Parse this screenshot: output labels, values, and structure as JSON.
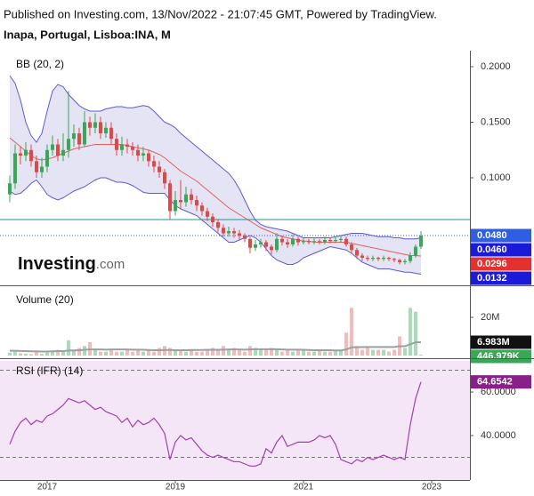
{
  "header": {
    "published": "Published on Investing.com, 13/Nov/2022 - 21:07:45 GMT, Powered by TradingView.",
    "symbol": "Inapa, Portugal, Lisboa:INA, M",
    "logo": "Investing",
    "logo_suffix": ".com"
  },
  "chart_data": [
    {
      "type": "candlestick",
      "title": "BB (20, 2)",
      "up_color": "#3aa757",
      "down_color": "#e04848",
      "band_color": "#5b5bd6",
      "band_fill": "#e4e4f4",
      "middle_color": "#e06060",
      "hline_color": "#2a8f8f",
      "open": [
        0.085,
        0.095,
        0.122,
        0.12,
        0.125,
        0.115,
        0.105,
        0.11,
        0.125,
        0.13,
        0.12,
        0.125,
        0.135,
        0.14,
        0.13,
        0.15,
        0.145,
        0.15,
        0.14,
        0.145,
        0.135,
        0.125,
        0.13,
        0.128,
        0.125,
        0.12,
        0.122,
        0.115,
        0.11,
        0.105,
        0.095,
        0.07,
        0.08,
        0.078,
        0.085,
        0.08,
        0.075,
        0.07,
        0.065,
        0.06,
        0.055,
        0.05,
        0.052,
        0.05,
        0.048,
        0.045,
        0.037,
        0.04,
        0.042,
        0.038,
        0.035,
        0.045,
        0.042,
        0.04,
        0.045,
        0.042,
        0.043,
        0.042,
        0.043,
        0.042,
        0.044,
        0.043,
        0.044,
        0.045,
        0.04,
        0.035,
        0.03,
        0.028,
        0.027,
        0.028,
        0.027,
        0.028,
        0.027,
        0.026,
        0.024,
        0.025,
        0.03,
        0.038
      ],
      "high": [
        0.102,
        0.13,
        0.128,
        0.132,
        0.13,
        0.12,
        0.118,
        0.13,
        0.138,
        0.135,
        0.14,
        0.178,
        0.148,
        0.145,
        0.16,
        0.155,
        0.158,
        0.155,
        0.15,
        0.15,
        0.14,
        0.137,
        0.135,
        0.132,
        0.13,
        0.128,
        0.125,
        0.12,
        0.115,
        0.108,
        0.098,
        0.088,
        0.098,
        0.092,
        0.09,
        0.084,
        0.078,
        0.073,
        0.068,
        0.063,
        0.058,
        0.056,
        0.055,
        0.053,
        0.05,
        0.047,
        0.044,
        0.045,
        0.044,
        0.04,
        0.05,
        0.048,
        0.045,
        0.049,
        0.047,
        0.046,
        0.045,
        0.046,
        0.045,
        0.047,
        0.046,
        0.047,
        0.048,
        0.047,
        0.042,
        0.037,
        0.032,
        0.03,
        0.03,
        0.029,
        0.03,
        0.029,
        0.028,
        0.027,
        0.027,
        0.033,
        0.04,
        0.052
      ],
      "low": [
        0.078,
        0.09,
        0.112,
        0.115,
        0.11,
        0.1,
        0.1,
        0.105,
        0.12,
        0.115,
        0.115,
        0.118,
        0.128,
        0.125,
        0.128,
        0.138,
        0.14,
        0.135,
        0.136,
        0.13,
        0.12,
        0.12,
        0.122,
        0.12,
        0.115,
        0.115,
        0.11,
        0.105,
        0.1,
        0.09,
        0.062,
        0.066,
        0.072,
        0.074,
        0.076,
        0.07,
        0.066,
        0.061,
        0.056,
        0.051,
        0.047,
        0.047,
        0.046,
        0.044,
        0.042,
        0.032,
        0.034,
        0.037,
        0.034,
        0.031,
        0.033,
        0.039,
        0.037,
        0.038,
        0.039,
        0.04,
        0.04,
        0.04,
        0.04,
        0.04,
        0.041,
        0.041,
        0.042,
        0.038,
        0.032,
        0.027,
        0.025,
        0.025,
        0.025,
        0.025,
        0.025,
        0.025,
        0.024,
        0.022,
        0.022,
        0.023,
        0.028,
        0.036
      ],
      "close": [
        0.095,
        0.122,
        0.12,
        0.125,
        0.115,
        0.105,
        0.11,
        0.125,
        0.13,
        0.12,
        0.125,
        0.135,
        0.14,
        0.13,
        0.15,
        0.145,
        0.15,
        0.14,
        0.145,
        0.135,
        0.125,
        0.13,
        0.128,
        0.125,
        0.12,
        0.122,
        0.115,
        0.11,
        0.105,
        0.095,
        0.07,
        0.08,
        0.078,
        0.085,
        0.08,
        0.075,
        0.07,
        0.065,
        0.06,
        0.055,
        0.05,
        0.052,
        0.05,
        0.048,
        0.045,
        0.037,
        0.04,
        0.042,
        0.038,
        0.035,
        0.045,
        0.042,
        0.04,
        0.045,
        0.042,
        0.043,
        0.042,
        0.043,
        0.042,
        0.044,
        0.043,
        0.044,
        0.045,
        0.04,
        0.035,
        0.03,
        0.028,
        0.027,
        0.028,
        0.027,
        0.028,
        0.027,
        0.026,
        0.024,
        0.025,
        0.03,
        0.038,
        0.048
      ],
      "bb_upper": [
        0.192,
        0.185,
        0.17,
        0.15,
        0.138,
        0.132,
        0.14,
        0.16,
        0.178,
        0.184,
        0.182,
        0.175,
        0.17,
        0.165,
        0.162,
        0.16,
        0.16,
        0.16,
        0.162,
        0.163,
        0.164,
        0.164,
        0.163,
        0.163,
        0.164,
        0.165,
        0.164,
        0.16,
        0.155,
        0.15,
        0.148,
        0.145,
        0.14,
        0.136,
        0.132,
        0.128,
        0.124,
        0.12,
        0.116,
        0.112,
        0.108,
        0.104,
        0.098,
        0.09,
        0.08,
        0.07,
        0.062,
        0.058,
        0.056,
        0.055,
        0.054,
        0.053,
        0.052,
        0.05,
        0.048,
        0.046,
        0.046,
        0.046,
        0.046,
        0.046,
        0.046,
        0.047,
        0.048,
        0.049,
        0.05,
        0.05,
        0.05,
        0.049,
        0.048,
        0.047,
        0.047,
        0.047,
        0.046,
        0.046,
        0.045,
        0.045,
        0.045,
        0.046
      ],
      "bb_middle": [
        0.136,
        0.132,
        0.128,
        0.124,
        0.12,
        0.117,
        0.116,
        0.117,
        0.118,
        0.12,
        0.122,
        0.124,
        0.126,
        0.127,
        0.128,
        0.129,
        0.13,
        0.13,
        0.13,
        0.13,
        0.13,
        0.13,
        0.129,
        0.128,
        0.127,
        0.126,
        0.125,
        0.123,
        0.121,
        0.118,
        0.114,
        0.11,
        0.106,
        0.103,
        0.1,
        0.097,
        0.093,
        0.089,
        0.085,
        0.081,
        0.077,
        0.073,
        0.07,
        0.067,
        0.064,
        0.061,
        0.058,
        0.055,
        0.053,
        0.051,
        0.049,
        0.047,
        0.046,
        0.045,
        0.044,
        0.043,
        0.043,
        0.042,
        0.042,
        0.042,
        0.042,
        0.042,
        0.042,
        0.042,
        0.041,
        0.04,
        0.039,
        0.038,
        0.037,
        0.036,
        0.035,
        0.034,
        0.033,
        0.032,
        0.031,
        0.03,
        0.03,
        0.0296
      ],
      "bb_lower": [
        0.088,
        0.085,
        0.086,
        0.09,
        0.095,
        0.098,
        0.092,
        0.085,
        0.082,
        0.08,
        0.082,
        0.085,
        0.088,
        0.09,
        0.092,
        0.095,
        0.098,
        0.1,
        0.1,
        0.098,
        0.096,
        0.096,
        0.095,
        0.093,
        0.09,
        0.087,
        0.086,
        0.086,
        0.086,
        0.086,
        0.08,
        0.075,
        0.072,
        0.07,
        0.068,
        0.066,
        0.062,
        0.058,
        0.054,
        0.05,
        0.046,
        0.042,
        0.042,
        0.044,
        0.046,
        0.048,
        0.046,
        0.042,
        0.036,
        0.03,
        0.026,
        0.024,
        0.022,
        0.022,
        0.024,
        0.028,
        0.03,
        0.032,
        0.034,
        0.036,
        0.038,
        0.037,
        0.036,
        0.035,
        0.032,
        0.028,
        0.024,
        0.022,
        0.02,
        0.018,
        0.018,
        0.018,
        0.017,
        0.016,
        0.015,
        0.015,
        0.014,
        0.0132
      ],
      "hline": 0.0624,
      "ylim": [
        0.004,
        0.2144
      ],
      "yticks": [
        {
          "value": 0.2,
          "label": "0.2000"
        },
        {
          "value": 0.15,
          "label": "0.1500"
        },
        {
          "value": 0.1,
          "label": "0.1000"
        }
      ],
      "price_labels": [
        {
          "value": 0.048,
          "label": "0.0480",
          "color": "#2f5fe0"
        },
        {
          "value": 0.046,
          "label": "0.0460",
          "color": "#1a1ad8"
        },
        {
          "value": 0.0296,
          "label": "0.0296",
          "color": "#e53030"
        },
        {
          "value": 0.0132,
          "label": "0.0132",
          "color": "#1a1ad8"
        }
      ]
    },
    {
      "type": "bar",
      "title": "Volume (20)",
      "up_color": "#a8dcb6",
      "down_color": "#f6baba",
      "ma_color": "#9aa0a0",
      "values": [
        1500000,
        2000000,
        1200000,
        1000000,
        800000,
        2000000,
        1000000,
        1500000,
        2000000,
        3000000,
        2000000,
        8000000,
        3000000,
        4000000,
        5000000,
        7000000,
        3000000,
        2000000,
        2000000,
        3000000,
        2000000,
        2000000,
        3000000,
        2000000,
        3000000,
        2000000,
        3000000,
        2000000,
        4000000,
        5000000,
        4000000,
        3000000,
        3000000,
        2000000,
        3000000,
        2000000,
        2000000,
        3000000,
        4000000,
        3000000,
        5000000,
        3000000,
        4000000,
        3000000,
        2000000,
        5000000,
        4000000,
        3000000,
        3000000,
        4000000,
        3000000,
        2000000,
        3000000,
        2000000,
        3000000,
        3000000,
        2000000,
        2000000,
        3000000,
        2000000,
        2000000,
        3000000,
        3000000,
        12000000,
        25000000,
        5000000,
        3000000,
        4000000,
        3000000,
        3000000,
        3000000,
        2000000,
        3000000,
        10000000,
        4000000,
        25000000,
        23000000,
        446979
      ],
      "ma": [
        2500000,
        2500000,
        2400000,
        2300000,
        2200000,
        2200000,
        2100000,
        2100000,
        2200000,
        2300000,
        2300000,
        2600000,
        2700000,
        2800000,
        3000000,
        3200000,
        3200000,
        3200000,
        3100000,
        3200000,
        3200000,
        3200000,
        3200000,
        3100000,
        3100000,
        3000000,
        2900000,
        2800000,
        2800000,
        2900000,
        2900000,
        2800000,
        2800000,
        2800000,
        2900000,
        2900000,
        2900000,
        3000000,
        3000000,
        3000000,
        3100000,
        3200000,
        3200000,
        3200000,
        3100000,
        3200000,
        3300000,
        3300000,
        3300000,
        3300000,
        3300000,
        3200000,
        3100000,
        3100000,
        3100000,
        3000000,
        2900000,
        2800000,
        2800000,
        2800000,
        2800000,
        2700000,
        2700000,
        3200000,
        4300000,
        4400000,
        4400000,
        4500000,
        4500000,
        4500000,
        4500000,
        4500000,
        4500000,
        4900000,
        4900000,
        5900000,
        6900000,
        6983000
      ],
      "ylim": [
        0,
        34900000
      ],
      "yticks": [
        {
          "value": 20000000,
          "label": "20M"
        }
      ],
      "price_labels": [
        {
          "value": 6983000,
          "label": "6.983M",
          "color": "#111111"
        },
        {
          "value": 446979,
          "label": "446.979K",
          "color": "#3aa757"
        }
      ]
    },
    {
      "type": "line",
      "title": "RSI (IFR) (14)",
      "color": "#a040b0",
      "background": "#f4e6f6",
      "values": [
        36,
        42,
        46,
        48,
        45,
        47,
        46,
        49,
        50,
        52,
        54,
        57,
        56,
        55,
        56,
        54,
        52,
        53,
        51,
        50,
        49,
        46,
        48,
        44,
        47,
        45,
        46,
        48,
        45,
        41,
        29,
        37,
        40,
        38,
        39,
        36,
        33,
        31,
        30,
        31,
        30,
        29,
        28,
        28,
        27,
        26,
        26,
        27,
        34,
        32,
        37,
        40,
        35,
        36,
        37,
        37,
        37,
        38,
        40,
        39,
        40,
        36,
        29,
        28,
        27,
        29,
        28,
        30,
        29,
        30,
        31,
        30,
        29,
        30,
        29,
        45,
        57,
        64.6542
      ],
      "levels": [
        30,
        70
      ],
      "ylim": [
        19.6,
        74.3
      ],
      "yticks": [
        {
          "value": 60,
          "label": "60.0000"
        },
        {
          "value": 40,
          "label": "40.0000"
        }
      ],
      "price_labels": [
        {
          "value": 64.6542,
          "label": "64.6542",
          "color": "#8a1f8a"
        }
      ],
      "xlim": [
        -1.83,
        86.17
      ],
      "xticks": [
        {
          "value": 7,
          "label": "2017"
        },
        {
          "value": 31,
          "label": "2019"
        },
        {
          "value": 55,
          "label": "2021"
        },
        {
          "value": 79,
          "label": "2023"
        }
      ]
    }
  ]
}
